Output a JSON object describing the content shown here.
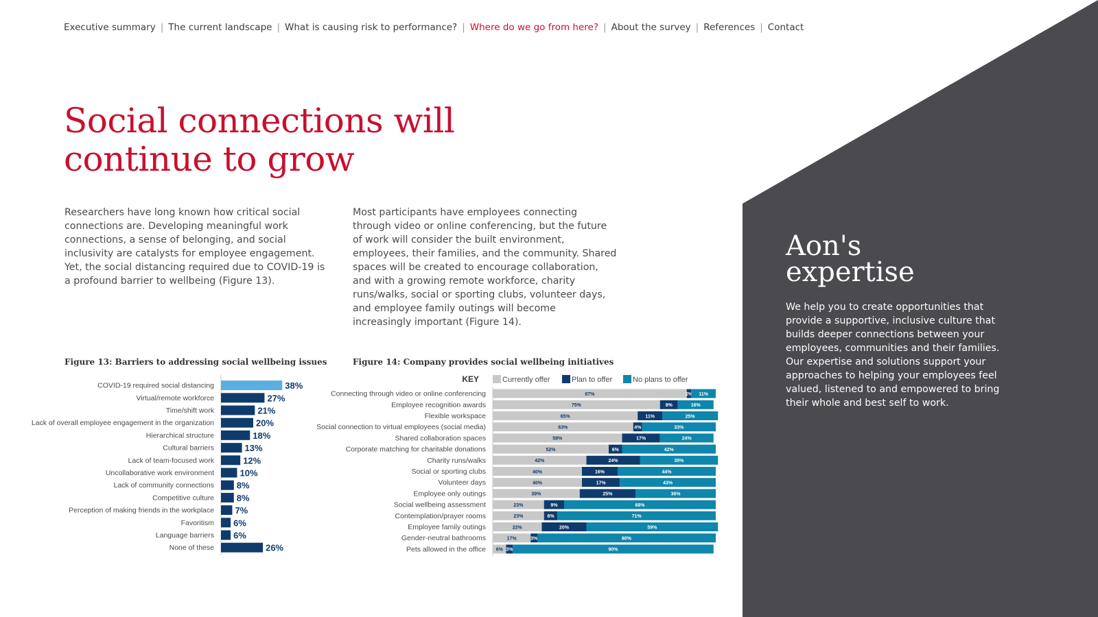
{
  "nav": {
    "items": [
      {
        "label": "Executive summary",
        "active": false
      },
      {
        "label": "The current landscape",
        "active": false
      },
      {
        "label": "What is causing risk to performance?",
        "active": false
      },
      {
        "label": "Where do we go from here?",
        "active": true
      },
      {
        "label": "About the survey",
        "active": false
      },
      {
        "label": "References",
        "active": false
      },
      {
        "label": "Contact",
        "active": false
      }
    ],
    "separator": "|"
  },
  "title": {
    "line1": "Social connections will",
    "line2": "continue to grow"
  },
  "paragraphs": {
    "left": "Researchers have long known how critical social connections are. Developing meaningful work connections, a sense of belonging, and social inclusivity are catalysts for employee engagement. Yet, the social distancing required due to COVID-19 is a profound barrier to wellbeing (Figure 13).",
    "right": "Most participants have employees connecting through video or online conferencing, but the future of work will consider the built environment, employees, their families, and the community. Shared spaces will be created to encourage collaboration, and with a growing remote workforce, charity runs/walks, social or sporting clubs, volunteer days, and employee family outings will become increasingly important (Figure 14)."
  },
  "aon": {
    "title_line1": "Aon's",
    "title_line2": "expertise",
    "body": "We help you to create opportunities that provide a supportive, inclusive culture that builds deeper connections between your employees, communities and their families. Our expertise and solutions support your approaches to helping your employees feel valued, listened to and empowered to bring their whole and best self to work."
  },
  "colors": {
    "accent_red": "#c8102e",
    "panel_gray": "#4a4a4f",
    "bar_highlight": "#5aafe0",
    "bar_navy": "#0f3b6c",
    "current_gray": "#c8c8c8",
    "no_plans_teal": "#0f86ab"
  },
  "chart_data": [
    {
      "type": "bar",
      "orientation": "horizontal",
      "title": "Figure 13: Barriers to addressing social wellbeing issues",
      "categories": [
        "COVID-19 required social distancing",
        "Virtual/remote workforce",
        "Time/shift work",
        "Lack of overall employee engagement in the organization",
        "Hierarchical structure",
        "Cultural barriers",
        "Lack of team-focused work",
        "Uncollaborative work environment",
        "Lack of community connections",
        "Competitive culture",
        "Perception of making friends in the workplace",
        "Favoritism",
        "Language barriers",
        "None of these"
      ],
      "values": [
        38,
        27,
        21,
        20,
        18,
        13,
        12,
        10,
        8,
        8,
        7,
        6,
        6,
        26
      ],
      "value_labels": [
        "38%",
        "27%",
        "21%",
        "20%",
        "18%",
        "13%",
        "12%",
        "10%",
        "8%",
        "8%",
        "7%",
        "6%",
        "6%",
        "26%"
      ],
      "highlight_index": 0,
      "unit": "%"
    },
    {
      "type": "bar",
      "orientation": "horizontal",
      "stacked": true,
      "title": "Figure 14: Company provides social wellbeing initiatives",
      "legend_title": "KEY",
      "categories": [
        "Connecting through video or online conferencing",
        "Employee recognition awards",
        "Flexible workspace",
        "Social connection to virtual employees (social media)",
        "Shared collaboration spaces",
        "Corporate matching for charitable donations",
        "Charity runs/walks",
        "Social or sporting clubs",
        "Volunteer days",
        "Employee only outings",
        "Social wellbeing assessment",
        "Contemplation/prayer rooms",
        "Employee family outings",
        "Gender-neutral bathrooms",
        "Pets allowed in the office"
      ],
      "series": [
        {
          "name": "Currently offer",
          "values": [
            87,
            75,
            65,
            63,
            58,
            52,
            42,
            40,
            40,
            39,
            23,
            23,
            22,
            17,
            6
          ]
        },
        {
          "name": "Plan to offer",
          "values": [
            2,
            8,
            11,
            4,
            17,
            6,
            24,
            16,
            17,
            25,
            9,
            6,
            20,
            3,
            3
          ]
        },
        {
          "name": "No plans to offer",
          "values": [
            11,
            16,
            25,
            33,
            24,
            42,
            35,
            44,
            43,
            36,
            68,
            71,
            59,
            80,
            90
          ]
        }
      ],
      "unit": "%"
    }
  ]
}
